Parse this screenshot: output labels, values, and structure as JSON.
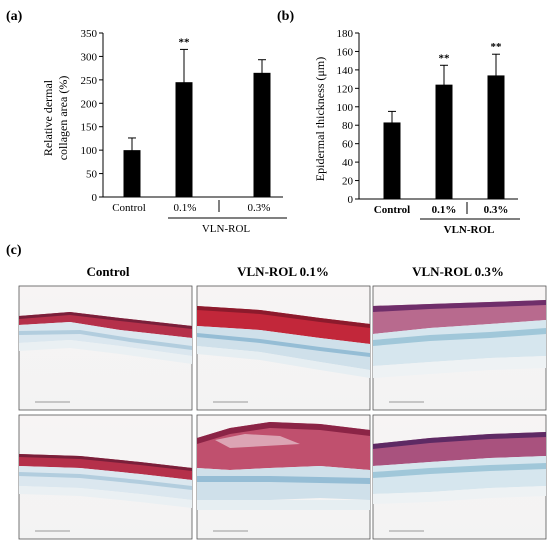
{
  "charts": [
    {
      "panel": "(a)",
      "ylabel_lines": [
        "Relative dermal",
        "collagen area (%)"
      ],
      "ylim": [
        0,
        350
      ],
      "yticks": [
        0,
        50,
        100,
        150,
        200,
        250,
        300,
        350
      ],
      "categories": [
        "Control",
        "0.1%",
        "0.3%"
      ],
      "group_label": "VLN-ROL",
      "significance": [
        "",
        "**",
        ""
      ]
    },
    {
      "panel": "(b)",
      "ylabel": "Epidermal thickness (μm)",
      "ylim": [
        0,
        180
      ],
      "yticks": [
        0,
        20,
        40,
        60,
        80,
        100,
        120,
        140,
        160,
        180
      ],
      "categories": [
        "Control",
        "0.1%",
        "0.3%"
      ],
      "group_label": "VLN-ROL",
      "significance": [
        "",
        "**",
        "**"
      ]
    }
  ],
  "chart_data": [
    {
      "type": "bar",
      "categories": [
        "Control",
        "0.1%",
        "0.3%"
      ],
      "values": [
        100,
        245,
        265
      ],
      "errors": [
        26,
        70,
        28
      ],
      "ylabel": "Relative dermal collagen area (%)",
      "ylim": [
        0,
        350
      ],
      "grid": false,
      "color": "#000000"
    },
    {
      "type": "bar",
      "categories": [
        "Control",
        "0.1%",
        "0.3%"
      ],
      "values": [
        83,
        124,
        134
      ],
      "errors": [
        12,
        21,
        23
      ],
      "ylabel": "Epidermal thickness (μm)",
      "ylim": [
        0,
        180
      ],
      "grid": false,
      "color": "#000000"
    }
  ],
  "histology": {
    "panel": "(c)",
    "columns": [
      "Control",
      "VLN-ROL 0.1%",
      "VLN-ROL 0.3%"
    ]
  },
  "colors": {
    "bar": "#000000",
    "stain_red": "#b3243c",
    "stain_purple": "#9a4e86",
    "stain_blue": "#a6c6d8"
  }
}
